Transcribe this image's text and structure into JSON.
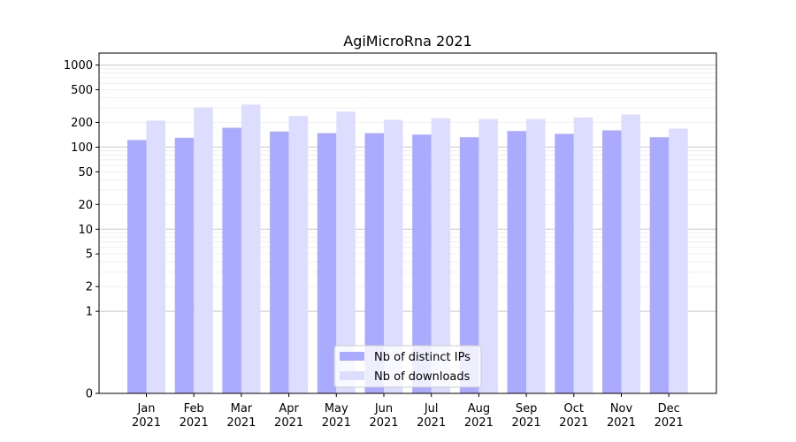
{
  "chart_data": {
    "type": "bar",
    "title": "AgiMicroRna 2021",
    "xlabel": "",
    "ylabel": "",
    "yscale": "symlog",
    "ylim": [
      0,
      1400
    ],
    "yticks": [
      0,
      1,
      2,
      5,
      10,
      20,
      50,
      100,
      200,
      500,
      1000
    ],
    "ytick_labels": [
      "0",
      "1",
      "2",
      "5",
      "10",
      "20",
      "50",
      "100",
      "200",
      "500",
      "1000"
    ],
    "grid": true,
    "legend_position": "bottom-center",
    "categories": [
      {
        "month": "Jan",
        "year": "2021"
      },
      {
        "month": "Feb",
        "year": "2021"
      },
      {
        "month": "Mar",
        "year": "2021"
      },
      {
        "month": "Apr",
        "year": "2021"
      },
      {
        "month": "May",
        "year": "2021"
      },
      {
        "month": "Jun",
        "year": "2021"
      },
      {
        "month": "Jul",
        "year": "2021"
      },
      {
        "month": "Aug",
        "year": "2021"
      },
      {
        "month": "Sep",
        "year": "2021"
      },
      {
        "month": "Oct",
        "year": "2021"
      },
      {
        "month": "Nov",
        "year": "2021"
      },
      {
        "month": "Dec",
        "year": "2021"
      }
    ],
    "series": [
      {
        "name": "Nb of distinct IPs",
        "color": "#aaaaff",
        "values": [
          122,
          130,
          172,
          155,
          148,
          148,
          142,
          132,
          157,
          145,
          160,
          132
        ]
      },
      {
        "name": "Nb of downloads",
        "color": "#ddddff",
        "values": [
          210,
          305,
          330,
          240,
          270,
          215,
          225,
          220,
          220,
          230,
          250,
          168
        ]
      }
    ]
  }
}
